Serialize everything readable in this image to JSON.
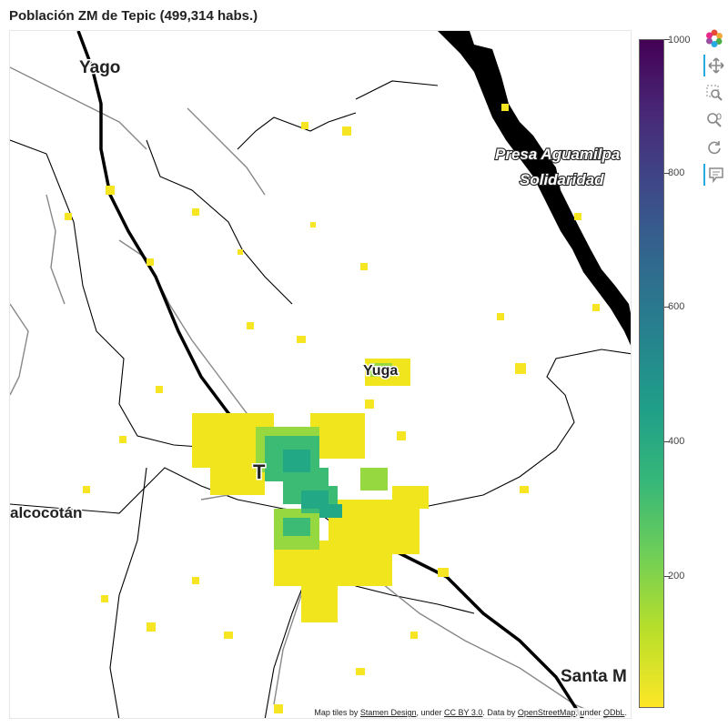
{
  "title": "Población ZM de Tepic (499,314 habs.)",
  "map": {
    "place_labels": {
      "yago": "Yago",
      "presa_1": "Presa Aguamilpa",
      "presa_2": "Solidaridad",
      "xalcocotan": "alcocotán",
      "santa_m": "Santa M",
      "tepic_partial": "T",
      "yuga": "Yuga"
    },
    "attribution": {
      "prefix": "Map tiles by ",
      "stamen": "Stamen Design",
      "under1": ", under ",
      "ccby": "CC BY 3.0",
      "data": ". Data by ",
      "osm": "OpenStreetMap",
      "under2": ", under ",
      "odbl": "ODbL",
      "end": "."
    }
  },
  "colorbar": {
    "palette": "Viridis (reversed)",
    "low_color": "#fde725",
    "high_color": "#440154",
    "min": 0,
    "max": 1000,
    "ticks": [
      "1000",
      "800",
      "600",
      "400",
      "200"
    ]
  },
  "toolbar": {
    "tools": [
      "bokeh-logo-icon",
      "pan-icon",
      "box-zoom-icon",
      "wheel-zoom-icon",
      "reset-icon",
      "hover-icon"
    ]
  }
}
